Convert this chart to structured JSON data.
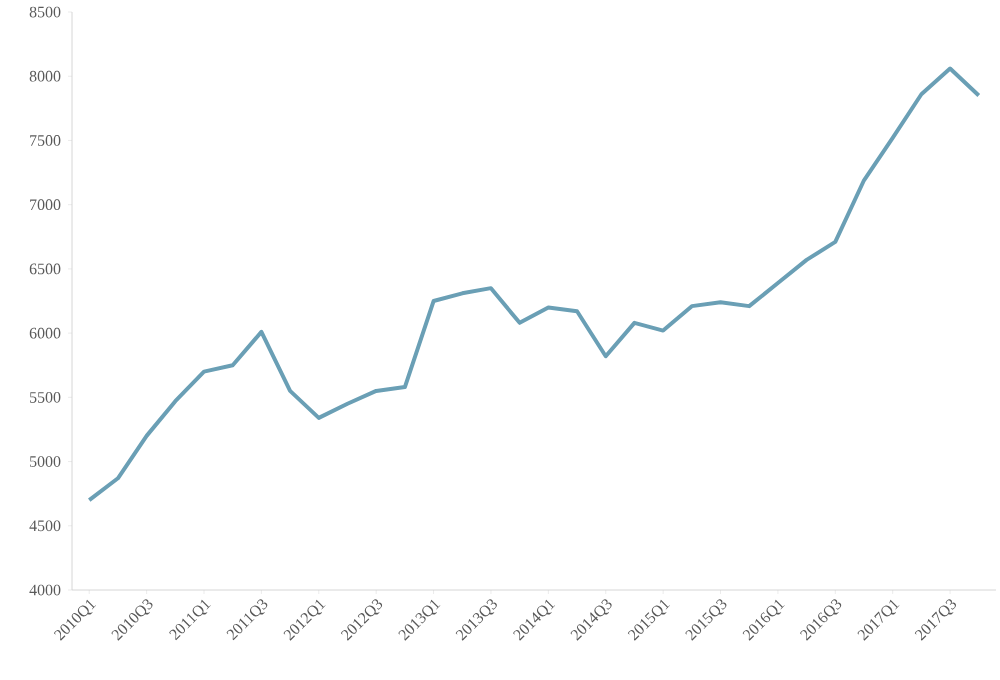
{
  "chart_data": {
    "type": "line",
    "categories": [
      "2010Q1",
      null,
      "2010Q3",
      null,
      "2011Q1",
      null,
      "2011Q3",
      null,
      "2012Q1",
      null,
      "2012Q3",
      null,
      "2013Q1",
      null,
      "2013Q3",
      null,
      "2014Q1",
      null,
      "2014Q3",
      null,
      "2015Q1",
      null,
      "2015Q3",
      null,
      "2016Q1",
      null,
      "2016Q3",
      null,
      "2017Q1",
      null,
      "2017Q3",
      null
    ],
    "series": [
      {
        "color": "#6a9fb5",
        "values": [
          4700,
          4870,
          5200,
          5470,
          5700,
          5750,
          6010,
          5550,
          5340,
          5450,
          5550,
          5580,
          6250,
          6310,
          6350,
          6080,
          6200,
          6170,
          5820,
          6080,
          6020,
          6210,
          6240,
          6210,
          6390,
          6570,
          6710,
          7190,
          7520,
          7860,
          8060,
          7850
        ]
      }
    ],
    "ylim": [
      4000,
      8500
    ],
    "yticks": [
      4000,
      4500,
      5000,
      5500,
      6000,
      6500,
      7000,
      7500,
      8000,
      8500
    ],
    "grid": false,
    "marker": "none",
    "line_style": "solid"
  }
}
